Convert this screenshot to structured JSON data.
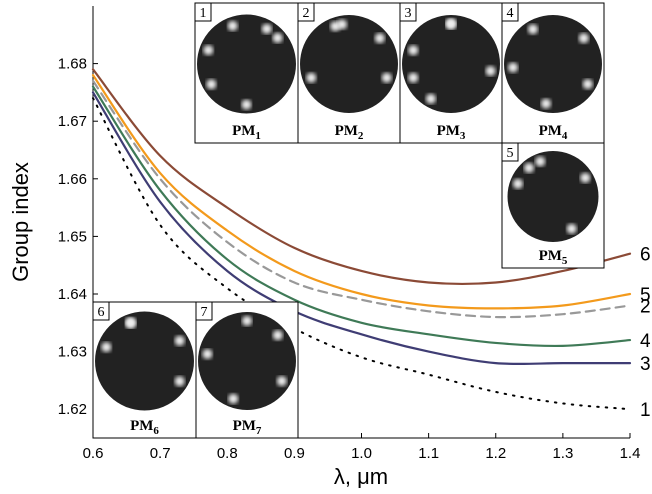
{
  "chart_data": {
    "type": "line",
    "y_label": "Group index",
    "x_label": "λ, μm",
    "x": [
      0.6,
      0.7,
      0.8,
      0.9,
      1.0,
      1.1,
      1.2,
      1.3,
      1.4
    ],
    "xlim": [
      0.6,
      1.4
    ],
    "xticks": [
      0.6,
      0.7,
      0.8,
      0.9,
      {
        "value": 1.0,
        "label": "1.0"
      },
      1.1,
      1.2,
      1.3,
      1.4
    ],
    "ylim": [
      1.615,
      1.69
    ],
    "yticks": [
      1.62,
      1.63,
      1.64,
      1.65,
      1.66,
      1.67,
      1.68
    ],
    "series": [
      {
        "name": "6",
        "color": "#8b4a36",
        "dash": "solid",
        "values": [
          1.679,
          1.664,
          1.655,
          1.648,
          1.644,
          1.642,
          1.642,
          1.644,
          1.647
        ]
      },
      {
        "name": "5",
        "color": "#f39a1c",
        "dash": "solid",
        "values": [
          1.678,
          1.661,
          1.651,
          1.644,
          1.64,
          1.638,
          1.6375,
          1.638,
          1.64
        ]
      },
      {
        "name": "2",
        "color": "#999999",
        "dash": "dashed",
        "values": [
          1.677,
          1.66,
          1.649,
          1.642,
          1.639,
          1.637,
          1.636,
          1.6365,
          1.638
        ]
      },
      {
        "name": "4",
        "color": "#3f7a57",
        "dash": "solid",
        "values": [
          1.676,
          1.658,
          1.646,
          1.639,
          1.635,
          1.633,
          1.6315,
          1.631,
          1.632
        ]
      },
      {
        "name": "3",
        "color": "#3f3d74",
        "dash": "solid",
        "values": [
          1.675,
          1.656,
          1.644,
          1.637,
          1.633,
          1.63,
          1.628,
          1.628,
          1.628
        ]
      },
      {
        "name": "1",
        "color": "#000000",
        "dash": "dotted",
        "values": [
          1.674,
          1.652,
          1.641,
          1.634,
          1.629,
          1.626,
          1.623,
          1.621,
          1.62
        ]
      }
    ],
    "insets": [
      {
        "number": "1",
        "label": "PM",
        "sub": "1"
      },
      {
        "number": "2",
        "label": "PM",
        "sub": "2"
      },
      {
        "number": "3",
        "label": "PM",
        "sub": "3"
      },
      {
        "number": "4",
        "label": "PM",
        "sub": "4"
      },
      {
        "number": "5",
        "label": "PM",
        "sub": "5"
      },
      {
        "number": "6",
        "label": "PM",
        "sub": "6"
      },
      {
        "number": "7",
        "label": "PM",
        "sub": "7"
      }
    ]
  }
}
